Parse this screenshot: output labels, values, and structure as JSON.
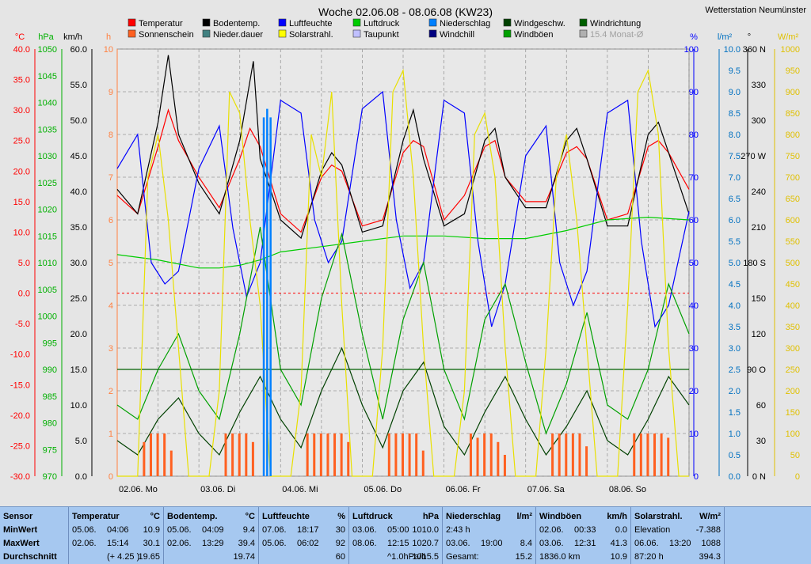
{
  "title": "Woche 02.06.08 - 08.06.08 (KW23)",
  "station": "Wetterstation Neumünster",
  "legend": [
    {
      "label": "Temperatur",
      "color": "#ff0000"
    },
    {
      "label": "Bodentemp.",
      "color": "#000000"
    },
    {
      "label": "Luftfeuchte",
      "color": "#0000ff"
    },
    {
      "label": "Luftdruck",
      "color": "#00cc00"
    },
    {
      "label": "Niederschlag",
      "color": "#0080ff"
    },
    {
      "label": "Windgeschw.",
      "color": "#004000"
    },
    {
      "label": "Windrichtung",
      "color": "#006000"
    },
    {
      "label": "Sonnenschein",
      "color": "#ff6020"
    },
    {
      "label": "Nieder.dauer",
      "color": "#408080"
    },
    {
      "label": "Solarstrahl.",
      "color": "#ffff00"
    },
    {
      "label": "Taupunkt",
      "color": "#c0c0ff"
    },
    {
      "label": "Windchill",
      "color": "#000080"
    },
    {
      "label": "Windböen",
      "color": "#00a000"
    },
    {
      "label": "15.4 Monat-Ø",
      "color": "#b0b0b0"
    }
  ],
  "axes": {
    "temp": {
      "unit": "°C",
      "color": "#ff0000",
      "ticks": [
        "40.0",
        "35.0",
        "30.0",
        "25.0",
        "20.0",
        "15.0",
        "10.0",
        "5.0",
        "0.0",
        "-5.0",
        "-10.0",
        "-15.0",
        "-20.0",
        "-25.0",
        "-30.0"
      ]
    },
    "press": {
      "unit": "hPa",
      "color": "#00b000",
      "ticks": [
        "1050",
        "1045",
        "1040",
        "1035",
        "1030",
        "1025",
        "1020",
        "1015",
        "1010",
        "1005",
        "1000",
        "995",
        "990",
        "985",
        "980",
        "975",
        "970"
      ]
    },
    "wind": {
      "unit": "km/h",
      "color": "#000000",
      "ticks": [
        "60.0",
        "55.0",
        "50.0",
        "45.0",
        "40.0",
        "35.0",
        "30.0",
        "25.0",
        "20.0",
        "15.0",
        "10.0",
        "5.0",
        "0.0"
      ]
    },
    "hours": {
      "unit": "h",
      "color": "#ff8040",
      "ticks": [
        "10",
        "9",
        "8",
        "7",
        "6",
        "5",
        "4",
        "3",
        "2",
        "1",
        "0"
      ]
    },
    "hum": {
      "unit": "%",
      "color": "#0000ff",
      "ticks": [
        "100",
        "90",
        "80",
        "70",
        "60",
        "50",
        "40",
        "30",
        "20",
        "10",
        "0"
      ]
    },
    "rain": {
      "unit": "l/m²",
      "color": "#0070c0",
      "ticks": [
        "10.0",
        "9.5",
        "9.0",
        "8.5",
        "8.0",
        "7.5",
        "7.0",
        "6.5",
        "6.0",
        "5.5",
        "5.0",
        "4.5",
        "4.0",
        "3.5",
        "3.0",
        "2.5",
        "2.0",
        "1.5",
        "1.0",
        "0.5",
        "0.0"
      ]
    },
    "dir": {
      "unit": "°",
      "color": "#000000",
      "ticks": [
        "360 N",
        "330",
        "300",
        "270 W",
        "240",
        "210",
        "180 S",
        "150",
        "120",
        "90 O",
        "60",
        "30",
        "0 N"
      ]
    },
    "solar": {
      "unit": "W/m²",
      "color": "#e0c000",
      "ticks": [
        "1000",
        "950",
        "900",
        "850",
        "800",
        "750",
        "700",
        "650",
        "600",
        "550",
        "500",
        "450",
        "400",
        "350",
        "300",
        "250",
        "200",
        "150",
        "100",
        "50",
        "0"
      ]
    }
  },
  "days": [
    "02.06. Mo",
    "03.06. Di",
    "04.06. Mi",
    "05.06. Do",
    "06.06. Fr",
    "07.06. Sa",
    "08.06. So"
  ],
  "chart_data": {
    "type": "line",
    "title": "Woche 02.06.08 - 08.06.08 (KW23)",
    "x_unit": "hours since 02.06. 00:00",
    "xlim": [
      0,
      168
    ],
    "series": [
      {
        "name": "Temperatur",
        "unit": "°C",
        "color": "#ff0000",
        "x": [
          0,
          6,
          12,
          15,
          18,
          24,
          30,
          36,
          39,
          42,
          48,
          54,
          60,
          63,
          66,
          72,
          78,
          84,
          87,
          90,
          96,
          102,
          108,
          111,
          114,
          120,
          126,
          132,
          135,
          138,
          144,
          150,
          156,
          159,
          162,
          168
        ],
        "values": [
          16,
          13,
          24,
          30,
          25,
          19,
          14,
          22,
          27,
          24,
          13,
          10,
          19,
          21,
          20,
          11,
          12,
          23,
          25,
          24,
          12,
          16,
          24,
          25,
          19,
          15,
          15,
          23,
          24,
          22,
          12,
          13,
          24,
          25,
          23,
          17
        ]
      },
      {
        "name": "Bodentemp.",
        "unit": "°C",
        "color": "#000000",
        "x": [
          0,
          6,
          12,
          15,
          18,
          24,
          30,
          36,
          40,
          42,
          48,
          54,
          60,
          63,
          66,
          72,
          78,
          84,
          87,
          90,
          96,
          102,
          108,
          111,
          114,
          120,
          126,
          132,
          135,
          138,
          144,
          150,
          156,
          159,
          162,
          168
        ],
        "values": [
          17,
          13,
          28,
          39,
          26,
          18,
          13,
          25,
          38,
          22,
          12,
          9,
          20,
          23,
          21,
          10,
          11,
          25,
          30,
          22,
          11,
          13,
          25,
          27,
          19,
          14,
          14,
          25,
          27,
          22,
          11,
          11,
          26,
          28,
          23,
          13
        ]
      },
      {
        "name": "Luftfeuchte",
        "unit": "%",
        "color": "#0000ff",
        "x": [
          0,
          6,
          10,
          14,
          18,
          24,
          30,
          34,
          38,
          42,
          48,
          54,
          58,
          62,
          66,
          72,
          78,
          82,
          86,
          90,
          96,
          102,
          106,
          110,
          114,
          120,
          126,
          130,
          134,
          138,
          144,
          150,
          154,
          158,
          162,
          168
        ],
        "values": [
          72,
          80,
          50,
          45,
          48,
          72,
          82,
          58,
          42,
          50,
          88,
          85,
          60,
          50,
          55,
          86,
          90,
          60,
          44,
          50,
          88,
          85,
          55,
          35,
          45,
          75,
          82,
          50,
          40,
          48,
          85,
          88,
          55,
          35,
          40,
          62
        ]
      },
      {
        "name": "Luftdruck",
        "unit": "hPa",
        "color": "#00cc00",
        "x": [
          0,
          12,
          24,
          30,
          36,
          42,
          48,
          60,
          72,
          84,
          96,
          108,
          120,
          132,
          144,
          156,
          168
        ],
        "values": [
          1011.5,
          1010.5,
          1009,
          1009,
          1009.5,
          1010.5,
          1012,
          1013,
          1014,
          1015,
          1015,
          1014.5,
          1014.5,
          1016,
          1018,
          1018.5,
          1018
        ]
      },
      {
        "name": "Windgeschw.",
        "unit": "km/h",
        "color": "#004000",
        "x": [
          0,
          6,
          12,
          18,
          24,
          30,
          36,
          42,
          48,
          54,
          60,
          66,
          72,
          78,
          84,
          90,
          96,
          102,
          108,
          114,
          120,
          126,
          132,
          138,
          144,
          150,
          156,
          162,
          168
        ],
        "values": [
          5,
          3,
          8,
          11,
          6,
          3,
          9,
          14,
          8,
          4,
          12,
          18,
          10,
          4,
          12,
          16,
          7,
          3,
          9,
          14,
          8,
          3,
          7,
          12,
          5,
          3,
          8,
          14,
          10
        ]
      },
      {
        "name": "Windböen",
        "unit": "km/h",
        "color": "#00a000",
        "x": [
          0,
          6,
          12,
          18,
          24,
          30,
          36,
          42,
          48,
          54,
          60,
          66,
          72,
          78,
          84,
          90,
          96,
          102,
          108,
          114,
          120,
          126,
          132,
          138,
          144,
          150,
          156,
          162,
          168
        ],
        "values": [
          10,
          8,
          15,
          20,
          12,
          8,
          20,
          35,
          15,
          10,
          25,
          34,
          20,
          8,
          22,
          30,
          15,
          8,
          22,
          27,
          16,
          6,
          13,
          23,
          10,
          8,
          15,
          27,
          20
        ]
      },
      {
        "name": "Windrichtung",
        "unit": "°",
        "color": "#006000",
        "x": [
          0,
          6,
          12,
          18,
          24,
          30,
          36,
          42,
          48,
          54,
          60,
          66,
          72,
          78,
          84,
          90,
          96,
          102,
          108,
          114,
          120,
          126,
          132,
          138,
          144,
          150,
          156,
          162,
          168
        ],
        "values": [
          90,
          90,
          90,
          90,
          90,
          90,
          90,
          90,
          90,
          90,
          90,
          90,
          90,
          90,
          90,
          90,
          90,
          90,
          90,
          90,
          90,
          90,
          90,
          90,
          90,
          90,
          90,
          90,
          90
        ]
      },
      {
        "name": "Solarstrahl.",
        "unit": "W/m²",
        "color": "#e8e000",
        "x": [
          0,
          3,
          6,
          9,
          12,
          15,
          18,
          21,
          24,
          27,
          30,
          33,
          36,
          39,
          42,
          45,
          48,
          51,
          54,
          57,
          60,
          63,
          66,
          69,
          72,
          75,
          78,
          81,
          84,
          87,
          90,
          93,
          96,
          99,
          102,
          105,
          108,
          111,
          114,
          117,
          120,
          123,
          126,
          129,
          132,
          135,
          138,
          141,
          144,
          147,
          150,
          153,
          156,
          159,
          162,
          165,
          168
        ],
        "values": [
          0,
          0,
          0,
          700,
          800,
          600,
          300,
          0,
          0,
          0,
          200,
          900,
          850,
          600,
          400,
          0,
          0,
          0,
          200,
          800,
          700,
          900,
          400,
          0,
          0,
          0,
          300,
          900,
          950,
          700,
          300,
          0,
          0,
          0,
          200,
          800,
          850,
          700,
          300,
          0,
          0,
          0,
          300,
          700,
          800,
          600,
          300,
          0,
          0,
          0,
          400,
          900,
          950,
          800,
          300,
          0,
          0
        ]
      },
      {
        "name": "Niederschlag",
        "unit": "l/m²",
        "color": "#0080ff",
        "x": [
          43,
          44,
          45
        ],
        "values": [
          8.4,
          8.6,
          8.4
        ]
      },
      {
        "name": "Sonnenschein",
        "unit": "h",
        "color": "#ff6020",
        "x": [
          8,
          10,
          12,
          14,
          16,
          32,
          34,
          36,
          38,
          40,
          56,
          58,
          60,
          62,
          64,
          66,
          68,
          80,
          82,
          84,
          86,
          88,
          90,
          104,
          106,
          108,
          110,
          112,
          114,
          128,
          130,
          132,
          134,
          136,
          138,
          152,
          154,
          156,
          158,
          160,
          162
        ],
        "values": [
          0.8,
          1,
          1,
          1,
          0.6,
          1,
          1,
          1,
          1,
          0.8,
          1,
          1,
          1,
          1,
          1,
          1,
          0.8,
          1,
          1,
          1,
          1,
          1,
          0.6,
          1,
          0.9,
          1,
          1,
          0.8,
          0.5,
          1,
          1,
          1,
          1,
          1,
          0.7,
          1,
          1,
          1,
          1,
          1,
          0.9
        ]
      }
    ]
  },
  "stats": {
    "row_labels": [
      "Sensor",
      "MinWert",
      "MaxWert",
      "Durchschnitt"
    ],
    "columns": [
      {
        "name": "Temperatur",
        "unit": "°C",
        "rows": [
          [
            "05.06.",
            "04:06",
            "10.9"
          ],
          [
            "02.06.",
            "15:14",
            "30.1"
          ],
          [
            "",
            "(+ 4.25 )",
            "19.65"
          ]
        ]
      },
      {
        "name": "Bodentemp.",
        "unit": "°C",
        "rows": [
          [
            "05.06.",
            "04:09",
            "9.4"
          ],
          [
            "02.06.",
            "13:29",
            "39.4"
          ],
          [
            "",
            "",
            "19.74"
          ]
        ]
      },
      {
        "name": "Luftfeuchte",
        "unit": "%",
        "rows": [
          [
            "07.06.",
            "18:17",
            "30"
          ],
          [
            "05.06.",
            "06:02",
            "92"
          ],
          [
            "",
            "",
            "60"
          ]
        ]
      },
      {
        "name": "Luftdruck",
        "unit": "hPa",
        "rows": [
          [
            "03.06.",
            "05:00",
            "1010.0"
          ],
          [
            "08.06.",
            "12:15",
            "1020.7"
          ],
          [
            "",
            "^1.0hPa/h",
            "1015.5"
          ]
        ]
      },
      {
        "name": "Niederschlag",
        "unit": "l/m²",
        "rows": [
          [
            "2:43 h",
            "",
            ""
          ],
          [
            "03.06.",
            "19:00",
            "8.4"
          ],
          [
            "Gesamt:",
            "",
            "15.2"
          ]
        ]
      },
      {
        "name": "Windböen",
        "unit": "km/h",
        "rows": [
          [
            "02.06.",
            "00:33",
            "0.0"
          ],
          [
            "03.06.",
            "12:31",
            "41.3"
          ],
          [
            "1836.0 km",
            "",
            "10.9"
          ]
        ]
      },
      {
        "name": "Solarstrahl.",
        "unit": "W/m²",
        "rows": [
          [
            "Elevation",
            "",
            "-7.388"
          ],
          [
            "06.06.",
            "13:20",
            "1088"
          ],
          [
            "87:20 h",
            "",
            "394.3"
          ]
        ]
      }
    ]
  }
}
